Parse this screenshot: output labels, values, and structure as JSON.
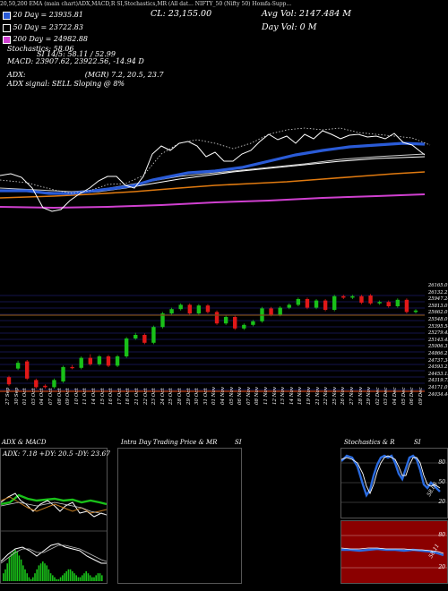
{
  "header": {
    "title_strip": "20,50,200 EMA (main chart)ADX,MACD,R    SI,Stochastics,MR    (All dat... NIFTY_50    (Nifty 50) Homfa-Supp...",
    "cl": "CL: 23,155.00",
    "avg_vol": "Avg Vol: 2147.484   M",
    "day_vol": "Day Vol: 0   M",
    "ema20": "20 Day = 23935.81",
    "ema50": "50 Day = 23722.83",
    "ema200": "200 Day = 24982.88",
    "stoch": "Stochastics: 58.06",
    "si": "SI 14/5: 58.11 / 52.99",
    "macd": "MACD: 23907.62, 23922.56, -14.94   D",
    "adx": "ADX:                          (MGR) 7.2, 20.5, 23.7",
    "adx_signal": "ADX  signal: SELL  Sloping @ 8%"
  },
  "colors": {
    "ema20": "#2a5bd7",
    "ema50": "#ffffff",
    "ema200": "#e07a10",
    "pink": "#d040d0",
    "up": "#19c019",
    "down": "#e01818",
    "grid": "#1a1a66"
  },
  "price_axis": [
    "26165.0",
    "26132.2",
    "25947.24",
    "25813.0",
    "25662.0",
    "25548.0",
    "25395.54",
    "25279.43",
    "25143.45",
    "25006.37",
    "24866.27",
    "24737.34",
    "24593.21",
    "24453.15",
    "24319.73",
    "24171.07",
    "24034.44"
  ],
  "date_axis": [
    "27 Sep",
    "30 Sep",
    "01 Oct",
    "03 Oct",
    "04 Oct",
    "07 Oct",
    "08 Oct",
    "09 Oct",
    "10 Oct",
    "11 Oct",
    "14 Oct",
    "15 Oct",
    "16 Oct",
    "17 Oct",
    "18 Oct",
    "21 Oct",
    "22 Oct",
    "23 Oct",
    "24 Oct",
    "25 Oct",
    "28 Oct",
    "29 Oct",
    "30 Oct",
    "31 Oct",
    "01 Nov",
    "04 Nov",
    "05 Nov",
    "06 Nov",
    "07 Nov",
    "08 Nov",
    "11 Nov",
    "12 Nov",
    "13 Nov",
    "14 Nov",
    "18 Nov",
    "19 Nov",
    "21 Nov",
    "22 Nov",
    "25 Nov",
    "26 Nov",
    "27 Nov",
    "28 Nov",
    "29 Nov",
    "02 Dec",
    "03 Dec",
    "04 Dec",
    "05 Dec",
    "06 Dec",
    "09 Dec"
  ],
  "panels": {
    "adx_title": "ADX  & MACD",
    "adx_values": "ADX: 7.18   +DY: 20.5  -DY: 23.67",
    "intraday_title": "Intra  Day Trading Price  & MR",
    "intraday_si": "SI",
    "stoch_title": "Stochastics & R",
    "stoch_si": "SI",
    "stoch_ticks": [
      "80",
      "50",
      "20"
    ],
    "stoch_value": "58.06",
    "rsi_ticks": [
      "80",
      "20"
    ],
    "rsi_value": "58.11"
  },
  "chart_data": {
    "type": "candlestick",
    "note_series": [
      "20 Day EMA",
      "50 Day EMA",
      "200 Day EMA"
    ],
    "candles": [
      {
        "o": 1.6,
        "c": 0.6,
        "h": 1.8,
        "l": 0.4
      },
      {
        "o": 2.8,
        "c": 3.6,
        "h": 3.9,
        "l": 2.6
      },
      {
        "o": 3.8,
        "c": 1.4,
        "h": 4.0,
        "l": 1.2
      },
      {
        "o": 1.2,
        "c": 0.2,
        "h": 1.4,
        "l": 0.0
      },
      {
        "o": 0.4,
        "c": 0.2,
        "h": 0.6,
        "l": 0.0
      },
      {
        "o": 0.2,
        "c": 1.2,
        "h": 1.4,
        "l": 0.0
      },
      {
        "o": 1.0,
        "c": 3.0,
        "h": 3.2,
        "l": 0.8
      },
      {
        "o": 3.0,
        "c": 2.9,
        "h": 3.3,
        "l": 2.7
      },
      {
        "o": 2.9,
        "c": 4.3,
        "h": 4.5,
        "l": 2.7
      },
      {
        "o": 4.3,
        "c": 3.4,
        "h": 4.8,
        "l": 3.2
      },
      {
        "o": 3.4,
        "c": 4.5,
        "h": 4.7,
        "l": 3.2
      },
      {
        "o": 4.5,
        "c": 3.2,
        "h": 4.7,
        "l": 3.0
      },
      {
        "o": 3.2,
        "c": 4.5,
        "h": 4.7,
        "l": 3.0
      },
      {
        "o": 4.5,
        "c": 7.0,
        "h": 7.2,
        "l": 4.3
      },
      {
        "o": 7.0,
        "c": 7.5,
        "h": 7.8,
        "l": 6.8
      },
      {
        "o": 7.5,
        "c": 6.4,
        "h": 7.7,
        "l": 6.2
      },
      {
        "o": 6.4,
        "c": 8.6,
        "h": 8.8,
        "l": 6.2
      },
      {
        "o": 8.6,
        "c": 10.5,
        "h": 10.7,
        "l": 8.4
      },
      {
        "o": 10.5,
        "c": 11.1,
        "h": 11.3,
        "l": 10.3
      },
      {
        "o": 11.1,
        "c": 11.7,
        "h": 11.9,
        "l": 10.9
      },
      {
        "o": 11.7,
        "c": 10.5,
        "h": 11.9,
        "l": 10.3
      },
      {
        "o": 10.5,
        "c": 11.6,
        "h": 11.8,
        "l": 10.3
      },
      {
        "o": 11.6,
        "c": 10.7,
        "h": 11.8,
        "l": 10.5
      },
      {
        "o": 10.7,
        "c": 9.1,
        "h": 10.9,
        "l": 8.9
      },
      {
        "o": 9.1,
        "c": 10.0,
        "h": 10.2,
        "l": 8.9
      },
      {
        "o": 10.0,
        "c": 8.4,
        "h": 10.2,
        "l": 8.2
      },
      {
        "o": 8.4,
        "c": 8.9,
        "h": 9.1,
        "l": 8.2
      },
      {
        "o": 8.9,
        "c": 9.4,
        "h": 9.6,
        "l": 8.7
      },
      {
        "o": 9.4,
        "c": 11.2,
        "h": 11.4,
        "l": 9.2
      },
      {
        "o": 11.2,
        "c": 10.3,
        "h": 11.4,
        "l": 10.1
      },
      {
        "o": 10.3,
        "c": 11.3,
        "h": 11.5,
        "l": 10.1
      },
      {
        "o": 11.3,
        "c": 11.7,
        "h": 11.9,
        "l": 11.1
      },
      {
        "o": 11.7,
        "c": 12.5,
        "h": 12.7,
        "l": 11.5
      },
      {
        "o": 12.5,
        "c": 11.3,
        "h": 12.7,
        "l": 11.1
      },
      {
        "o": 11.3,
        "c": 12.3,
        "h": 12.5,
        "l": 11.1
      },
      {
        "o": 12.3,
        "c": 11.0,
        "h": 12.5,
        "l": 10.8
      },
      {
        "o": 11.0,
        "c": 12.9,
        "h": 13.1,
        "l": 10.8
      },
      {
        "o": 12.9,
        "c": 12.7,
        "h": 13.1,
        "l": 12.5
      },
      {
        "o": 12.7,
        "c": 12.9,
        "h": 13.1,
        "l": 12.5
      },
      {
        "o": 12.9,
        "c": 12.0,
        "h": 13.1,
        "l": 11.8
      },
      {
        "o": 13.0,
        "c": 11.9,
        "h": 13.2,
        "l": 11.7
      },
      {
        "o": 11.9,
        "c": 12.1,
        "h": 12.3,
        "l": 11.7
      },
      {
        "o": 12.1,
        "c": 11.5,
        "h": 12.3,
        "l": 11.3
      },
      {
        "o": 11.5,
        "c": 12.4,
        "h": 12.6,
        "l": 11.3
      },
      {
        "o": 12.4,
        "c": 10.7,
        "h": 12.6,
        "l": 10.5
      },
      {
        "o": 10.7,
        "c": 10.9,
        "h": 11.1,
        "l": 10.5
      }
    ]
  }
}
